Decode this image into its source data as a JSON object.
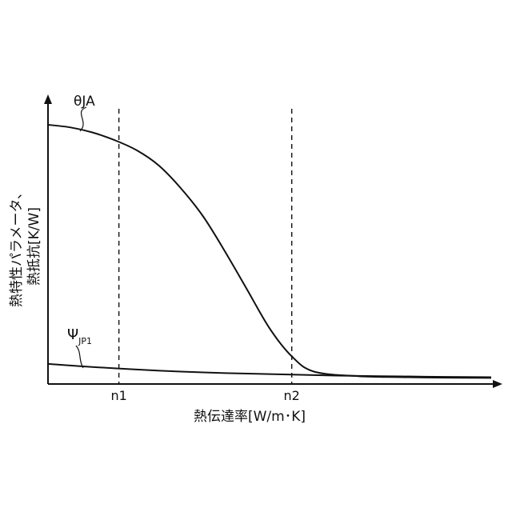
{
  "chart_data": {
    "type": "line",
    "xlabel": "熱伝達率[W/m･K]",
    "ylabel_lines": [
      "熱特性パラメータ、",
      "熱抵抗[K/W]"
    ],
    "x_ticks": [
      "n1",
      "n2"
    ],
    "series": [
      {
        "name": "θJA",
        "x": [
          0,
          5,
          10,
          15,
          20,
          25,
          30,
          35,
          40,
          45,
          50,
          55,
          60,
          70,
          80,
          90,
          100
        ],
        "y": [
          100,
          99,
          97,
          94,
          90,
          84,
          75,
          64,
          50,
          35,
          20,
          9,
          3,
          1.2,
          0.8,
          0.6,
          0.5
        ]
      },
      {
        "name_main": "Ψ",
        "name_sub": "JP1",
        "x": [
          0,
          10,
          20,
          30,
          40,
          50,
          60,
          70,
          80,
          90,
          100
        ],
        "y": [
          6,
          4.8,
          3.8,
          3,
          2.4,
          2,
          1.6,
          1.3,
          1.1,
          0.9,
          0.8
        ]
      }
    ],
    "n_markers": [
      {
        "label": "n1",
        "x": 16
      },
      {
        "label": "n2",
        "x": 55
      }
    ],
    "xlim": [
      0,
      100
    ],
    "ylim": [
      0,
      100
    ],
    "grid": false,
    "legend": "inline labels"
  }
}
